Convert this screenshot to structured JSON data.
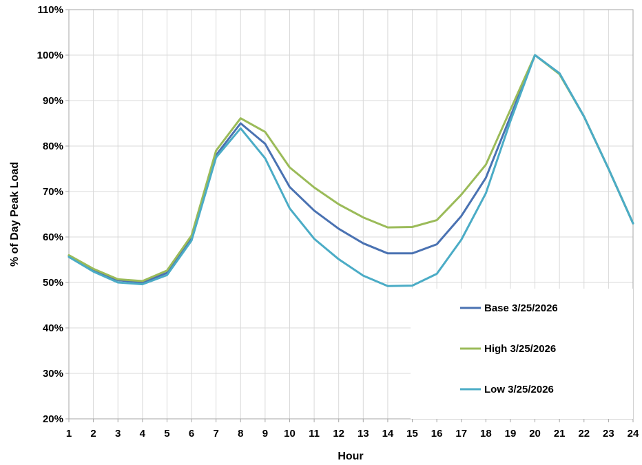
{
  "chart_data": {
    "type": "line",
    "xlabel": "Hour",
    "ylabel": "% of Day Peak Load",
    "x": [
      1,
      2,
      3,
      4,
      5,
      6,
      7,
      8,
      9,
      10,
      11,
      12,
      13,
      14,
      15,
      16,
      17,
      18,
      19,
      20,
      21,
      22,
      23,
      24
    ],
    "x_tick_labels": [
      "1",
      "2",
      "3",
      "4",
      "5",
      "6",
      "7",
      "8",
      "9",
      "10",
      "11",
      "12",
      "13",
      "14",
      "15",
      "16",
      "17",
      "18",
      "19",
      "20",
      "21",
      "22",
      "23",
      "24"
    ],
    "ylim": [
      20,
      110
    ],
    "y_ticks": [
      20,
      30,
      40,
      50,
      60,
      70,
      80,
      90,
      100,
      110
    ],
    "y_tick_labels": [
      "20%",
      "30%",
      "40%",
      "50%",
      "60%",
      "70%",
      "80%",
      "90%",
      "100%",
      "110%"
    ],
    "grid": true,
    "legend_position": "bottom-right",
    "series": [
      {
        "name": "Base 3/25/2026",
        "color": "#4a72b2",
        "values": [
          55.8,
          52.6,
          50.5,
          50.0,
          52.1,
          59.8,
          78.0,
          85.0,
          80.5,
          71.0,
          65.8,
          61.8,
          58.6,
          56.4,
          56.4,
          58.4,
          64.6,
          73.0,
          86.5,
          100.0,
          96.0,
          86.5,
          75.0,
          63.0
        ]
      },
      {
        "name": "High 3/25/2026",
        "color": "#9bbb59",
        "values": [
          56.0,
          53.0,
          50.7,
          50.3,
          52.6,
          60.3,
          79.0,
          86.1,
          83.1,
          75.3,
          70.9,
          67.2,
          64.3,
          62.1,
          62.2,
          63.7,
          69.3,
          75.9,
          88.0,
          100.0,
          95.8,
          86.5,
          75.0,
          63.0
        ]
      },
      {
        "name": "Low 3/25/2026",
        "color": "#4bacc6",
        "values": [
          55.6,
          52.4,
          50.0,
          49.6,
          51.6,
          59.2,
          77.5,
          83.9,
          77.3,
          66.3,
          59.6,
          55.1,
          51.5,
          49.2,
          49.3,
          51.9,
          59.4,
          69.6,
          85.5,
          100.0,
          96.0,
          86.5,
          75.0,
          63.0
        ]
      }
    ]
  }
}
